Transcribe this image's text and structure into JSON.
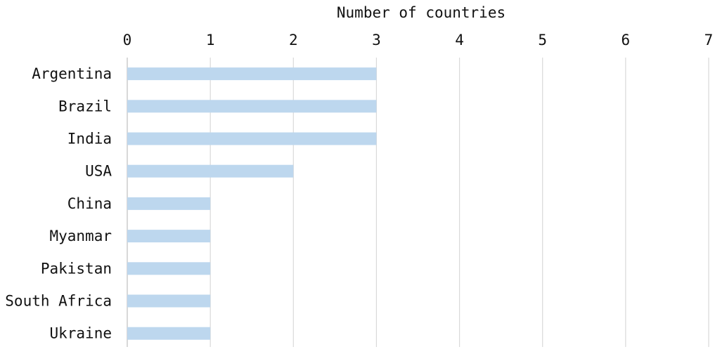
{
  "chart_data": {
    "type": "bar",
    "orientation": "horizontal",
    "xlabel": "Number of countries",
    "xlabel_position": "top",
    "xlim": [
      0,
      7
    ],
    "xticks": [
      "0",
      "1",
      "2",
      "3",
      "4",
      "5",
      "6",
      "7"
    ],
    "grid": "vertical",
    "categories": [
      "Argentina",
      "Brazil",
      "India",
      "USA",
      "China",
      "Myanmar",
      "Pakistan",
      "South Africa",
      "Ukraine"
    ],
    "values": [
      3,
      3,
      3,
      2,
      1,
      1,
      1,
      1,
      1
    ],
    "bar_color": "#bdd7ee"
  }
}
